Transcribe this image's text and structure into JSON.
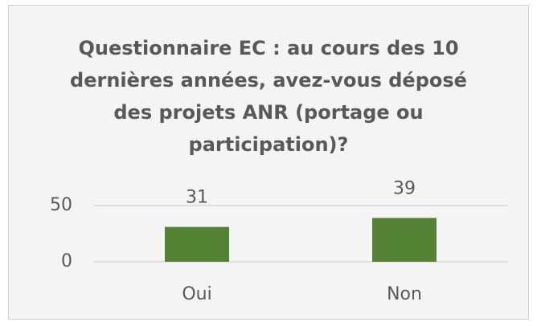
{
  "chart_data": {
    "type": "bar",
    "title": "Questionnaire EC : au cours des 10 dernières années, avez-vous déposé des projets ANR (portage ou participation)?",
    "categories": [
      "Oui",
      "Non"
    ],
    "values": [
      31,
      39
    ],
    "color": "#548235",
    "ylim": [
      0,
      50
    ],
    "yticks": [
      0,
      50
    ],
    "grid": true
  }
}
